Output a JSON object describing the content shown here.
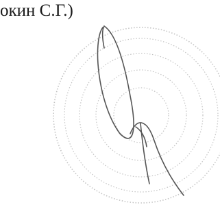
{
  "signature_line": {
    "text": "окин С.Г.)"
  }
}
